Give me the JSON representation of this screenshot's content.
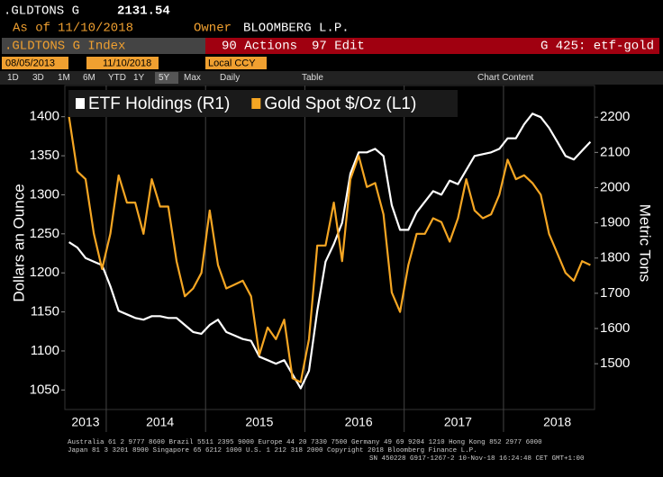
{
  "header": {
    "ticker": ".GLDTONS G",
    "last": "2131.54",
    "as_of_label": "As of",
    "as_of": "11/10/2018",
    "owner_label": "Owner",
    "owner": "BLOOMBERG L.P.",
    "security": ".GLDTONS G Index",
    "actions": "90 Actions",
    "edit": "97 Edit",
    "page_code": "G 425: etf-gold",
    "start_date": "08/05/2013",
    "end_date": "11/10/2018",
    "currency": "Local CCY",
    "ranges": [
      "1D",
      "3D",
      "1M",
      "6M",
      "YTD",
      "1Y",
      "5Y",
      "Max"
    ],
    "selected_range": "5Y",
    "frequency": "Daily",
    "table": "Table",
    "chart_content": "Chart Content"
  },
  "footer": {
    "line1": "Australia 61 2 9777 8600 Brazil 5511 2395 9000 Europe 44 20 7330 7500 Germany 49 69 9204 1210 Hong Kong 852 2977 6000",
    "line2": "Japan 81 3 3201 8900          Singapore 65 6212 1000          U.S. 1 212 318 2000          Copyright 2018 Bloomberg Finance L.P.",
    "line3": "SN 450228 G917-1267-2 10-Nov-18 16:24:48 CET  GMT+1:00"
  },
  "chart_data": {
    "type": "line",
    "ylabel": "Dollars an Ounce",
    "y2label": "Metric Tons",
    "categories": [
      null,
      null,
      "2013",
      null,
      null,
      null,
      null,
      null,
      null,
      null,
      null,
      "2014",
      null,
      null,
      null,
      null,
      null,
      null,
      null,
      null,
      null,
      null,
      null,
      "2015",
      null,
      null,
      null,
      null,
      null,
      null,
      null,
      null,
      null,
      null,
      null,
      "2016",
      null,
      null,
      null,
      null,
      null,
      null,
      null,
      null,
      null,
      null,
      null,
      "2017",
      null,
      null,
      null,
      null,
      null,
      null,
      null,
      null,
      null,
      null,
      null,
      "2018",
      null,
      null,
      null,
      null
    ],
    "series": [
      {
        "name": "ETF Holdings (R1)",
        "color": "#ffffff",
        "axis": "y2",
        "values": [
          1845,
          1830,
          1800,
          1790,
          1780,
          1720,
          1650,
          1640,
          1630,
          1625,
          1635,
          1635,
          1630,
          1630,
          1610,
          1590,
          1585,
          1610,
          1625,
          1590,
          1580,
          1570,
          1565,
          1520,
          1510,
          1500,
          1510,
          1470,
          1430,
          1480,
          1650,
          1790,
          1840,
          1900,
          2040,
          2100,
          2100,
          2110,
          2090,
          1950,
          1880,
          1880,
          1930,
          1960,
          1990,
          1980,
          2020,
          2010,
          2050,
          2090,
          2095,
          2100,
          2110,
          2140,
          2140,
          2180,
          2210,
          2200,
          2170,
          2130,
          2090,
          2080,
          2105,
          2130
        ]
      },
      {
        "name": "Gold Spot $/Oz (L1)",
        "color": "#f5a623",
        "values": [
          1400,
          1330,
          1320,
          1250,
          1205,
          1250,
          1325,
          1290,
          1290,
          1250,
          1320,
          1285,
          1285,
          1215,
          1170,
          1180,
          1200,
          1280,
          1210,
          1180,
          1185,
          1190,
          1170,
          1095,
          1130,
          1115,
          1140,
          1065,
          1060,
          1115,
          1235,
          1235,
          1290,
          1215,
          1320,
          1350,
          1310,
          1315,
          1275,
          1175,
          1150,
          1210,
          1250,
          1250,
          1270,
          1265,
          1240,
          1270,
          1320,
          1280,
          1270,
          1275,
          1300,
          1345,
          1320,
          1325,
          1315,
          1300,
          1250,
          1225,
          1200,
          1190,
          1215,
          1210
        ]
      }
    ],
    "ylim": [
      1025,
      1440
    ],
    "yticks": [
      1050,
      1100,
      1150,
      1200,
      1250,
      1300,
      1350,
      1400
    ],
    "y2lim": [
      1370,
      2290
    ],
    "y2ticks": [
      1500,
      1600,
      1700,
      1800,
      1900,
      2000,
      2100,
      2200
    ]
  }
}
